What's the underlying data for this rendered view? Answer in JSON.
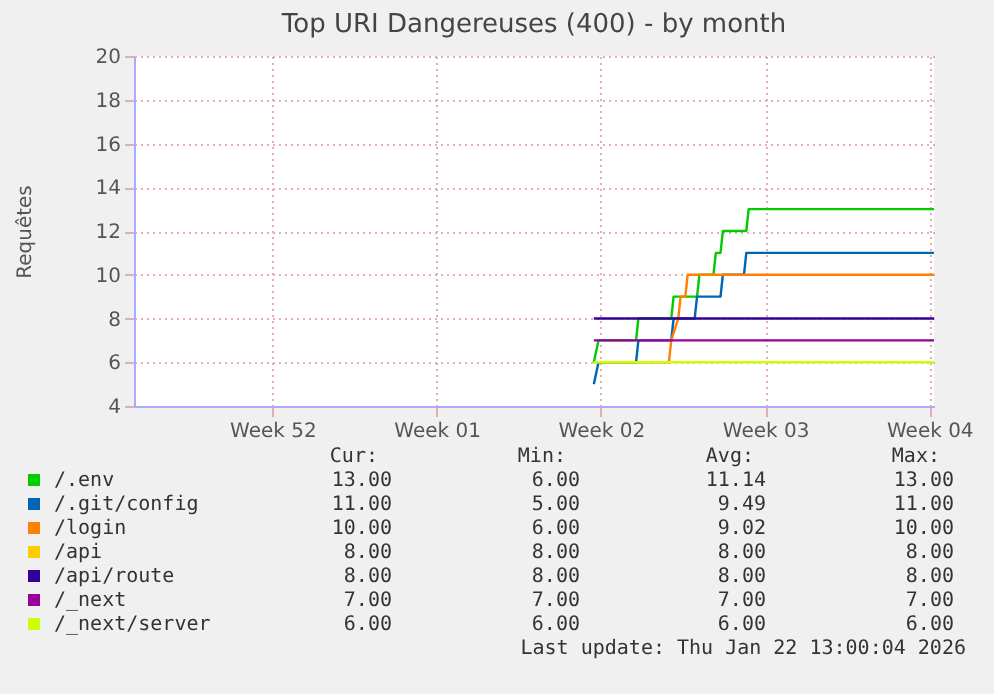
{
  "chart_data": {
    "type": "line",
    "title": "Top URI Dangereuses (400) - by month",
    "ylabel": "Requêtes",
    "xlim": [
      "2025-12-16T02:24",
      "2026-01-19T04:48"
    ],
    "xticks": [
      {
        "value": "2025-12-22",
        "label": "Week 52"
      },
      {
        "value": "2025-12-29",
        "label": "Week 01"
      },
      {
        "value": "2026-01-05",
        "label": "Week 02"
      },
      {
        "value": "2026-01-12",
        "label": "Week 03"
      },
      {
        "value": "2026-01-19",
        "label": "Week 04"
      }
    ],
    "ylim": [
      4,
      20
    ],
    "yticks": [
      4,
      6,
      8,
      10,
      12,
      14,
      16,
      18,
      20
    ],
    "grid": true,
    "legend": "bottom",
    "line_style": "solid",
    "series": [
      {
        "name": "/.env",
        "color": "#00cc00",
        "x": [
          "2026-01-04T16:48",
          "2026-01-04T21:36",
          "2026-01-06T12:00",
          "2026-01-06T14:24",
          "2026-01-08T00:00",
          "2026-01-08T02:24",
          "2026-01-09T02:24",
          "2026-01-09T04:48",
          "2026-01-09T19:12",
          "2026-01-09T21:36",
          "2026-01-10T02:24",
          "2026-01-10T04:48",
          "2026-01-11T04:48",
          "2026-01-11T07:12",
          "2026-01-19T04:48"
        ],
        "values": [
          6,
          7,
          7,
          8,
          8,
          9,
          9,
          10,
          10,
          11,
          11,
          12,
          12,
          13,
          13
        ]
      },
      {
        "name": "/.git/config",
        "color": "#0066b3",
        "x": [
          "2026-01-04T16:48",
          "2026-01-04T21:36",
          "2026-01-06T12:00",
          "2026-01-06T14:24",
          "2026-01-08T00:00",
          "2026-01-08T02:24",
          "2026-01-09T00:00",
          "2026-01-09T02:24",
          "2026-01-10T02:24",
          "2026-01-10T04:48",
          "2026-01-11T02:24",
          "2026-01-11T04:48",
          "2026-01-19T04:48"
        ],
        "values": [
          5,
          6,
          6,
          7,
          7,
          8,
          8,
          9,
          9,
          10,
          10,
          11,
          11
        ]
      },
      {
        "name": "/login",
        "color": "#ff8000",
        "x": [
          "2026-01-04T16:48",
          "2026-01-07T21:36",
          "2026-01-08T00:00",
          "2026-01-08T07:12",
          "2026-01-08T09:36",
          "2026-01-08T14:24",
          "2026-01-08T16:48",
          "2026-01-19T04:48"
        ],
        "values": [
          6,
          6,
          7,
          8,
          9,
          9,
          10,
          10
        ]
      },
      {
        "name": "/api",
        "color": "#ffcc00",
        "values": [
          null
        ]
      },
      {
        "name": "/api/route",
        "color": "#330099",
        "x": [
          "2026-01-04T16:48",
          "2026-01-19T04:48"
        ],
        "values": [
          8,
          8
        ]
      },
      {
        "name": "/_next",
        "color": "#990099",
        "x": [
          "2026-01-04T16:48",
          "2026-01-19T04:48"
        ],
        "values": [
          7,
          7
        ]
      },
      {
        "name": "/_next/server",
        "color": "#ccff00",
        "x": [
          "2026-01-04T16:48",
          "2026-01-19T04:48"
        ],
        "values": [
          6,
          6
        ]
      }
    ],
    "annotations": [
      "Cur:",
      "Min:",
      "Avg:",
      "Max:",
      "13.00",
      "6.00",
      "11.14",
      "13.00",
      "11.00",
      "5.00",
      "9.49",
      "11.00",
      "10.00",
      "6.00",
      "9.02",
      "10.00",
      "8.00",
      "8.00",
      "8.00",
      "8.00",
      "8.00",
      "8.00",
      "8.00",
      "8.00",
      "7.00",
      "7.00",
      "7.00",
      "7.00",
      "6.00",
      "6.00",
      "6.00",
      "6.00",
      "Last update: Thu Jan 22 13:00:04 2026"
    ]
  }
}
